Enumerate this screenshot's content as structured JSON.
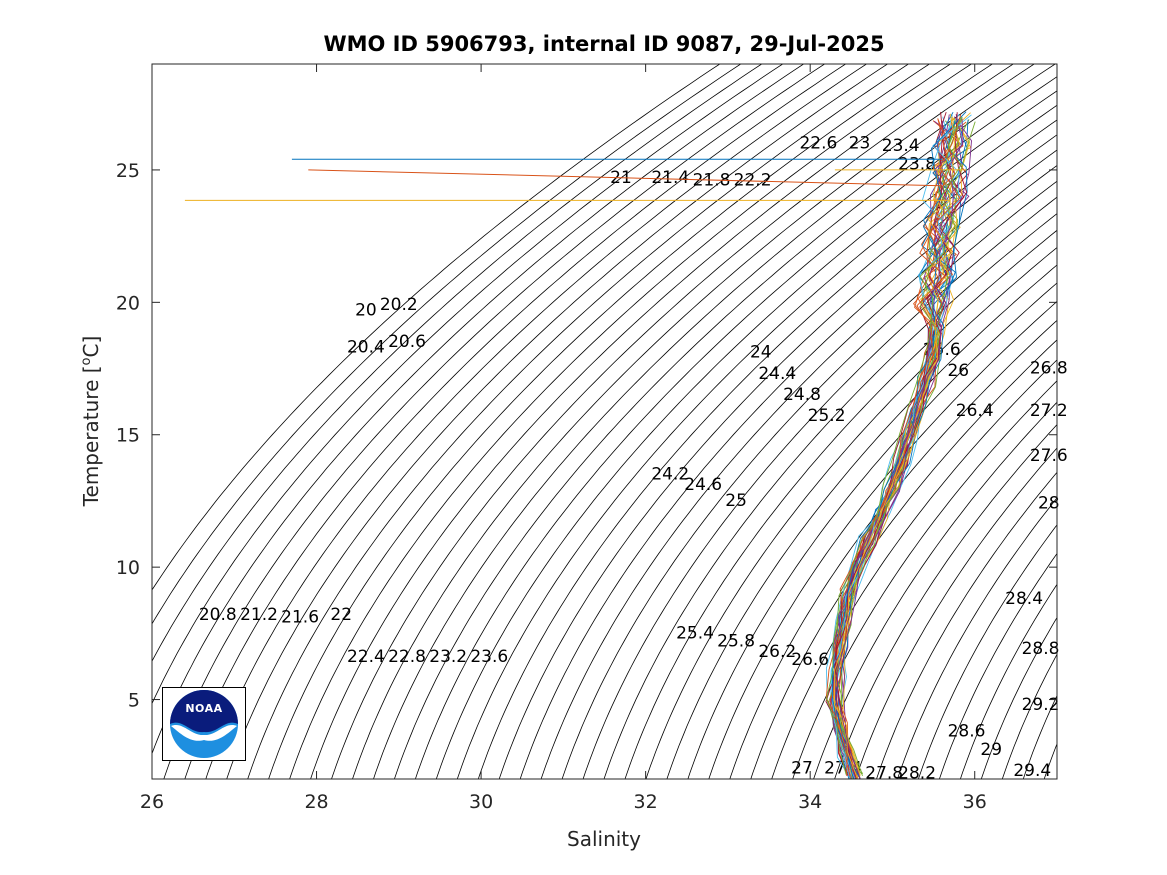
{
  "chart_data": {
    "type": "line",
    "title": "WMO ID 5906793, internal ID 9087, 29-Jul-2025",
    "xlabel": "Salinity",
    "ylabel_prefix": "Temperature [",
    "ylabel_sup": "o",
    "ylabel_suffix": "C]",
    "xlim": [
      26,
      37
    ],
    "ylim": [
      2,
      29
    ],
    "xticks": [
      26,
      28,
      30,
      32,
      34,
      36
    ],
    "yticks": [
      5,
      10,
      15,
      20,
      25
    ],
    "grid": false,
    "density_contours": {
      "sigma_min": 20.0,
      "sigma_max": 29.4,
      "step": 0.2,
      "color": "#000000",
      "labels": [
        {
          "text": "20",
          "s": 28.6,
          "t": 19.7
        },
        {
          "text": "20.2",
          "s": 29.0,
          "t": 19.9
        },
        {
          "text": "20.4",
          "s": 28.6,
          "t": 18.3
        },
        {
          "text": "20.6",
          "s": 29.1,
          "t": 18.5
        },
        {
          "text": "20.8",
          "s": 26.8,
          "t": 8.2
        },
        {
          "text": "21",
          "s": 31.7,
          "t": 24.7
        },
        {
          "text": "21.2",
          "s": 27.3,
          "t": 8.2
        },
        {
          "text": "21.4",
          "s": 32.3,
          "t": 24.7
        },
        {
          "text": "21.6",
          "s": 27.8,
          "t": 8.1
        },
        {
          "text": "21.8",
          "s": 32.8,
          "t": 24.6
        },
        {
          "text": "22",
          "s": 28.3,
          "t": 8.2
        },
        {
          "text": "22.2",
          "s": 33.3,
          "t": 24.6
        },
        {
          "text": "22.4",
          "s": 28.6,
          "t": 6.6
        },
        {
          "text": "22.6",
          "s": 34.1,
          "t": 26.0
        },
        {
          "text": "22.8",
          "s": 29.1,
          "t": 6.6
        },
        {
          "text": "23",
          "s": 34.6,
          "t": 26.0
        },
        {
          "text": "23.2",
          "s": 29.6,
          "t": 6.6
        },
        {
          "text": "23.4",
          "s": 35.1,
          "t": 25.9
        },
        {
          "text": "23.6",
          "s": 30.1,
          "t": 6.6
        },
        {
          "text": "23.8",
          "s": 35.3,
          "t": 25.2
        },
        {
          "text": "24",
          "s": 33.4,
          "t": 18.1
        },
        {
          "text": "24.2",
          "s": 32.3,
          "t": 13.5
        },
        {
          "text": "24.4",
          "s": 33.6,
          "t": 17.3
        },
        {
          "text": "24.6",
          "s": 32.7,
          "t": 13.1
        },
        {
          "text": "24.8",
          "s": 33.9,
          "t": 16.5
        },
        {
          "text": "25",
          "s": 33.1,
          "t": 12.5
        },
        {
          "text": "25.2",
          "s": 34.2,
          "t": 15.7
        },
        {
          "text": "25.4",
          "s": 32.6,
          "t": 7.5
        },
        {
          "text": "25.6",
          "s": 35.6,
          "t": 18.2
        },
        {
          "text": "25.8",
          "s": 33.1,
          "t": 7.2
        },
        {
          "text": "26",
          "s": 35.8,
          "t": 17.4
        },
        {
          "text": "26.2",
          "s": 33.6,
          "t": 6.8
        },
        {
          "text": "26.4",
          "s": 36.0,
          "t": 15.9
        },
        {
          "text": "26.6",
          "s": 34.0,
          "t": 6.5
        },
        {
          "text": "26.8",
          "s": 36.9,
          "t": 17.5
        },
        {
          "text": "27",
          "s": 33.9,
          "t": 2.4
        },
        {
          "text": "27.2",
          "s": 36.9,
          "t": 15.9
        },
        {
          "text": "27.4",
          "s": 34.4,
          "t": 2.4
        },
        {
          "text": "27.6",
          "s": 36.9,
          "t": 14.2
        },
        {
          "text": "27.8",
          "s": 34.9,
          "t": 2.2
        },
        {
          "text": "28",
          "s": 36.9,
          "t": 12.4
        },
        {
          "text": "28.2",
          "s": 35.3,
          "t": 2.2
        },
        {
          "text": "28.4",
          "s": 36.6,
          "t": 8.8
        },
        {
          "text": "28.6",
          "s": 35.9,
          "t": 3.8
        },
        {
          "text": "28.8",
          "s": 36.8,
          "t": 6.9
        },
        {
          "text": "29",
          "s": 36.2,
          "t": 3.1
        },
        {
          "text": "29.2",
          "s": 36.8,
          "t": 4.8
        },
        {
          "text": "29.4",
          "s": 36.7,
          "t": 2.3
        }
      ]
    },
    "spike_lines": [
      {
        "color": "#0072BD",
        "points": [
          [
            27.7,
            25.4
          ],
          [
            35.6,
            25.4
          ]
        ]
      },
      {
        "color": "#D95319",
        "points": [
          [
            27.9,
            25.0
          ],
          [
            35.6,
            24.4
          ]
        ]
      },
      {
        "color": "#EDB120",
        "points": [
          [
            26.4,
            23.85
          ],
          [
            35.7,
            23.85
          ]
        ]
      },
      {
        "color": "#EDB120",
        "points": [
          [
            34.3,
            25.0
          ],
          [
            35.9,
            25.0
          ]
        ]
      }
    ],
    "profile_mean": [
      [
        34.55,
        2.0
      ],
      [
        34.45,
        3.0
      ],
      [
        34.35,
        4.0
      ],
      [
        34.3,
        5.0
      ],
      [
        34.32,
        6.0
      ],
      [
        34.35,
        7.0
      ],
      [
        34.4,
        8.0
      ],
      [
        34.47,
        9.0
      ],
      [
        34.57,
        10.0
      ],
      [
        34.7,
        11.0
      ],
      [
        34.85,
        12.0
      ],
      [
        34.98,
        13.0
      ],
      [
        35.1,
        14.0
      ],
      [
        35.2,
        15.0
      ],
      [
        35.3,
        16.0
      ],
      [
        35.4,
        17.0
      ],
      [
        35.48,
        18.0
      ],
      [
        35.52,
        19.0
      ],
      [
        35.52,
        20.0
      ],
      [
        35.55,
        21.0
      ],
      [
        35.58,
        22.0
      ],
      [
        35.62,
        23.0
      ],
      [
        35.66,
        24.0
      ],
      [
        35.7,
        25.0
      ],
      [
        35.72,
        26.0
      ],
      [
        35.75,
        27.0
      ]
    ],
    "profile_count": 40,
    "profile_colors": [
      "#0072BD",
      "#D95319",
      "#EDB120",
      "#7E2F8E",
      "#77AC30",
      "#4DBEEE",
      "#A2142F"
    ]
  },
  "logo": {
    "text": "NOAA",
    "colors": {
      "top": "#0A1C7C",
      "bottom": "#1E8FE0"
    }
  }
}
